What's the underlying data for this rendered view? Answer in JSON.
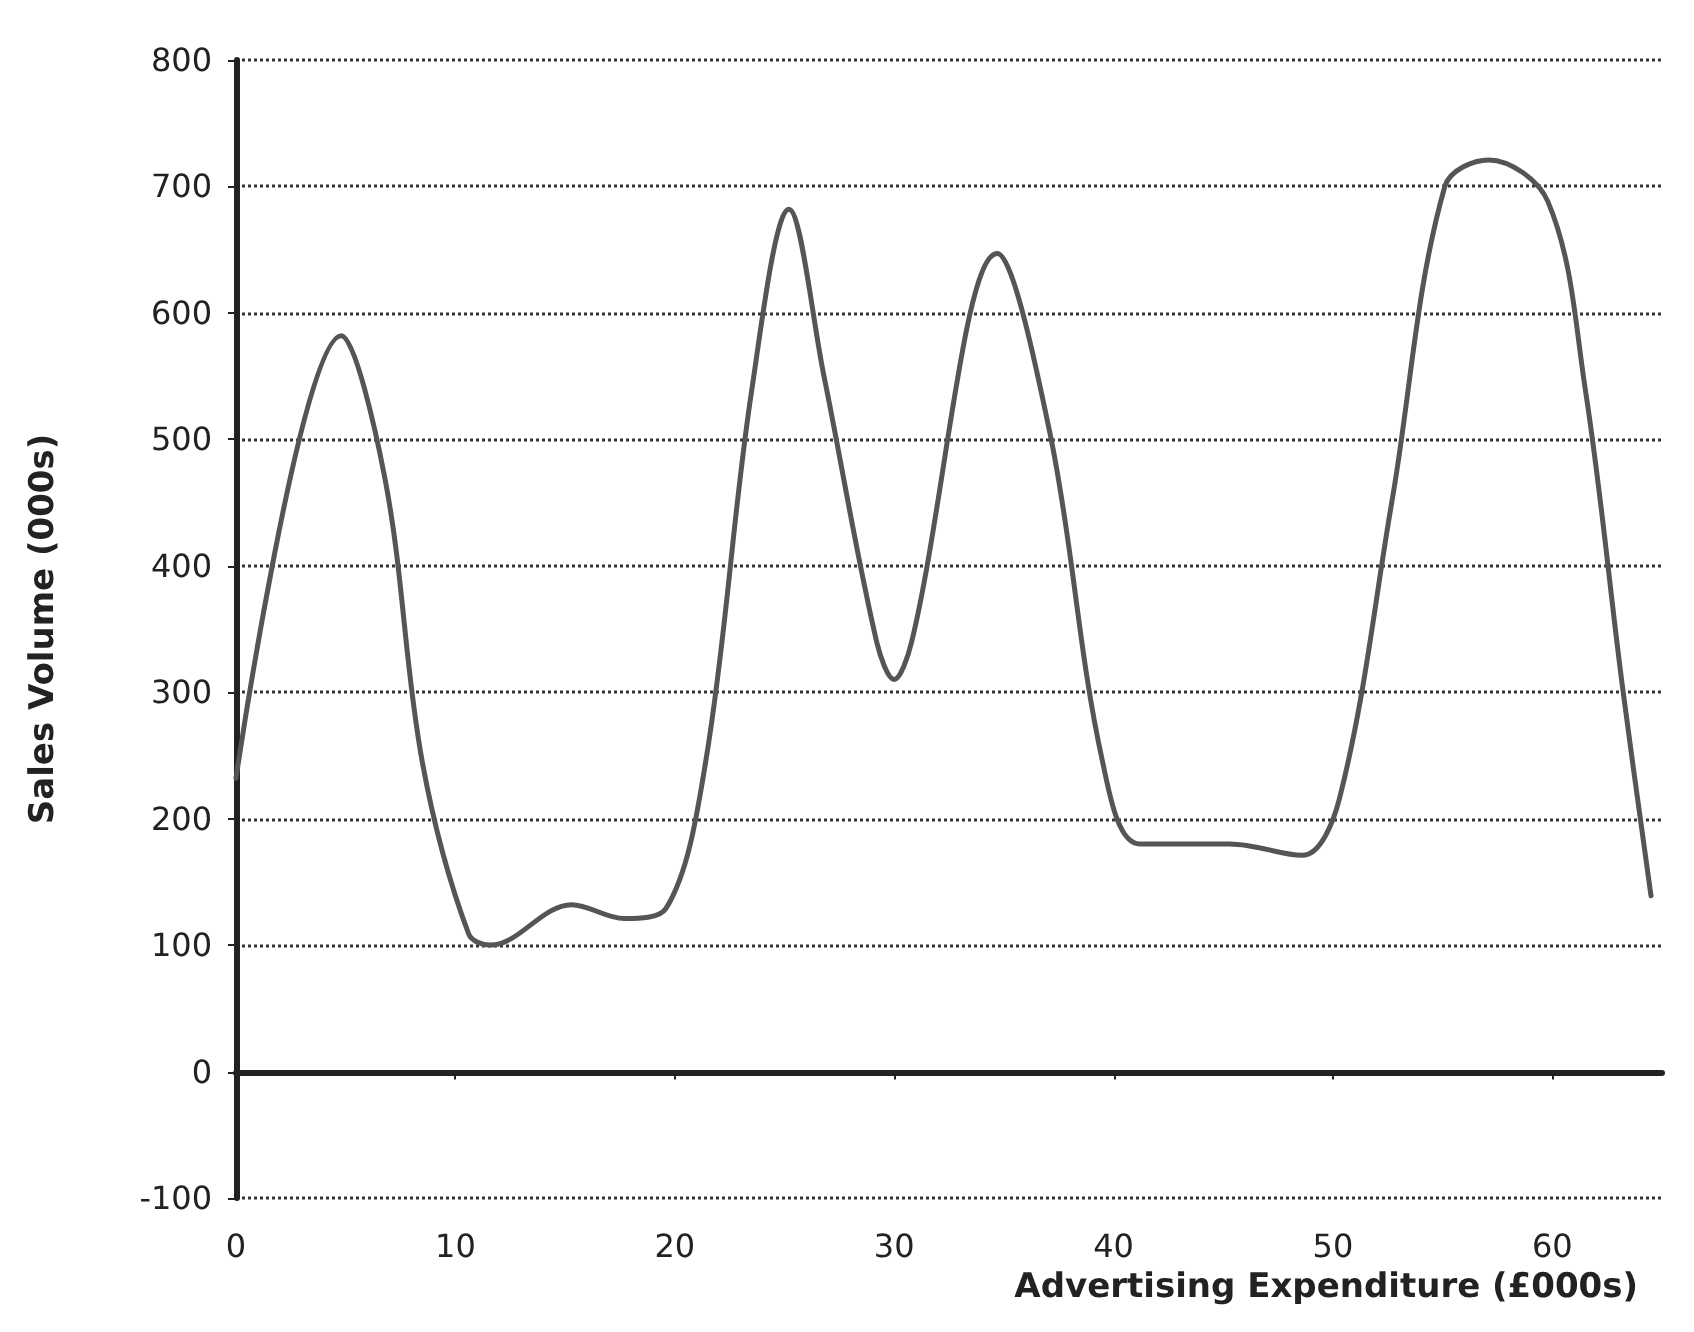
{
  "chart_data": {
    "type": "line",
    "xlabel": "Advertising Expenditure (£000s)",
    "ylabel": "Sales Volume (000s)",
    "xlim": [
      0,
      65
    ],
    "xticks": [
      0,
      10,
      20,
      30,
      40,
      50,
      60
    ],
    "ylim": [
      -100,
      800
    ],
    "yticks": [
      -100,
      0,
      100,
      200,
      300,
      400,
      500,
      600,
      700,
      800
    ],
    "grid": "y",
    "marker": "none",
    "line_style": "solid",
    "series": [
      {
        "color": "#555555",
        "x": [
          0,
          4.8,
          6.8,
          8.5,
          10.6,
          11.6,
          15.3,
          17.7,
          19.6,
          21.4,
          23.5,
          25.2,
          26.8,
          29.2,
          30,
          30.8,
          34.7,
          37.1,
          39.5,
          41.2,
          45.3,
          48.6,
          50.3,
          52.7,
          55.1,
          57.1,
          59.8,
          61.5,
          63.2,
          64.5
        ],
        "values": [
          232,
          582,
          468,
          244,
          109,
          100,
          132,
          121,
          129,
          244,
          538,
          682,
          550,
          340,
          310,
          340,
          647,
          505,
          245,
          180,
          180,
          171,
          216,
          452,
          700,
          721,
          688,
          540,
          304,
          139
        ]
      }
    ]
  }
}
